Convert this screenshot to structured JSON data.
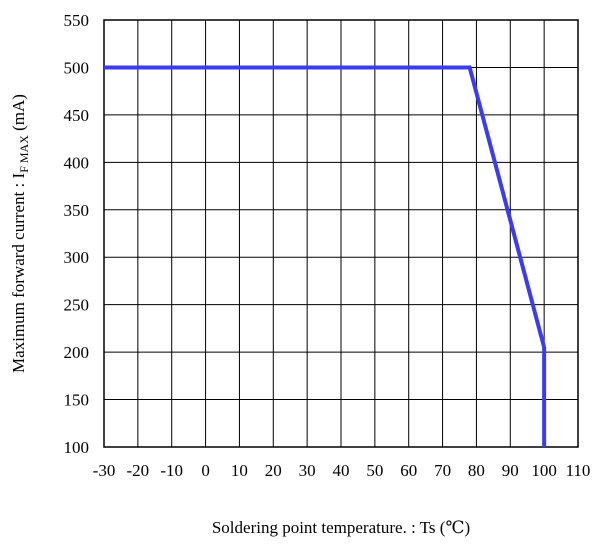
{
  "chart_data": {
    "type": "line",
    "xlabel": "Soldering point temperature. : Ts (℃)",
    "ylabel_main": "Maximum forward current : I",
    "ylabel_sub": "F MAX",
    "ylabel_tail": " (mA)",
    "xlim": [
      -30,
      110
    ],
    "ylim": [
      100,
      550
    ],
    "xticks": [
      -30,
      -20,
      -10,
      0,
      10,
      20,
      30,
      40,
      50,
      60,
      70,
      80,
      90,
      100,
      110
    ],
    "yticks": [
      100,
      150,
      200,
      250,
      300,
      350,
      400,
      450,
      500,
      550
    ],
    "grid": true,
    "series": [
      {
        "color": "#3b3bf0",
        "x": [
          -30,
          78,
          100,
          100
        ],
        "y": [
          500,
          500,
          205,
          100
        ]
      }
    ]
  }
}
